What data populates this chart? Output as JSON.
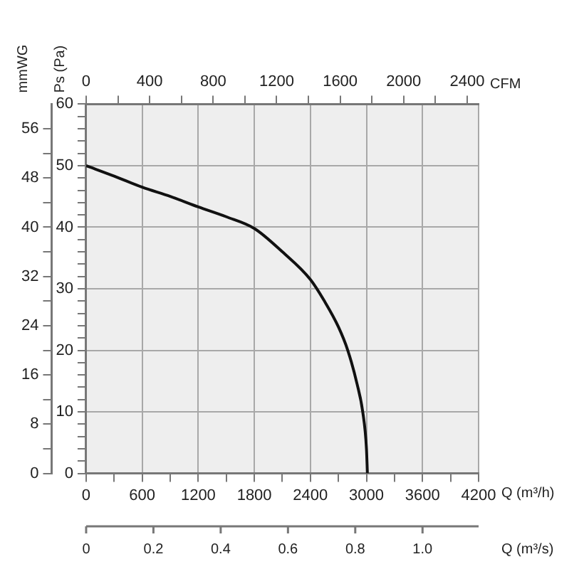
{
  "chart_data": {
    "type": "line",
    "xlabel": "Q (m³/h)",
    "x2label": "CFM",
    "ylabel": "Ps (Pa)",
    "y3label": "mmWG",
    "annotations": [
      "Q (m³/s)",
      "0",
      "0.2",
      "0.4",
      "0.6",
      "0.8",
      "1.0"
    ],
    "x": [
      0,
      300,
      600,
      900,
      1200,
      1500,
      1800,
      2100,
      2400,
      2550,
      2700,
      2800,
      2900,
      2960,
      3000,
      3010
    ],
    "series": [
      {
        "color": "#111111",
        "values": [
          50,
          48.3,
          46.5,
          45,
          43.3,
          41.7,
          39.8,
          36,
          31.5,
          28,
          23.8,
          20,
          14.5,
          10,
          4,
          0
        ]
      }
    ],
    "xlim": [
      0,
      4200
    ],
    "xticks": [
      0,
      {
        "value": 300,
        "label": null
      },
      600,
      {
        "value": 900,
        "label": null
      },
      1200,
      {
        "value": 1500,
        "label": null
      },
      1800,
      {
        "value": 2100,
        "label": null
      },
      2400,
      {
        "value": 2700,
        "label": null
      },
      3000,
      {
        "value": 3300,
        "label": null
      },
      3600,
      {
        "value": 3900,
        "label": null
      },
      4200
    ],
    "ylim": [
      0,
      60
    ],
    "yticks": [
      0,
      {
        "value": 2,
        "label": null
      },
      {
        "value": 4,
        "label": null
      },
      {
        "value": 6,
        "label": null
      },
      {
        "value": 8,
        "label": null
      },
      10,
      {
        "value": 12,
        "label": null
      },
      {
        "value": 14,
        "label": null
      },
      {
        "value": 16,
        "label": null
      },
      {
        "value": 18,
        "label": null
      },
      20,
      {
        "value": 22,
        "label": null
      },
      {
        "value": 24,
        "label": null
      },
      {
        "value": 26,
        "label": null
      },
      {
        "value": 28,
        "label": null
      },
      30,
      {
        "value": 32,
        "label": null
      },
      {
        "value": 34,
        "label": null
      },
      {
        "value": 36,
        "label": null
      },
      {
        "value": 38,
        "label": null
      },
      40,
      {
        "value": 42,
        "label": null
      },
      {
        "value": 44,
        "label": null
      },
      {
        "value": 46,
        "label": null
      },
      {
        "value": 48,
        "label": null
      },
      50,
      {
        "value": 52,
        "label": null
      },
      {
        "value": 54,
        "label": null
      },
      {
        "value": 56,
        "label": null
      },
      {
        "value": 58,
        "label": null
      },
      60
    ],
    "x2lim": [
      0,
      2472
    ],
    "x2ticks": [
      0,
      {
        "value": 200,
        "label": null
      },
      400,
      {
        "value": 600,
        "label": null
      },
      800,
      {
        "value": 1000,
        "label": null
      },
      1200,
      {
        "value": 1400,
        "label": null
      },
      1600,
      {
        "value": 1800,
        "label": null
      },
      2000,
      {
        "value": 2200,
        "label": null
      },
      2400
    ],
    "y3lim": [
      0,
      60
    ],
    "y3ticks": [
      0,
      {
        "value": 4,
        "label": null
      },
      8,
      {
        "value": 12,
        "label": null
      },
      16,
      {
        "value": 20,
        "label": null
      },
      24,
      {
        "value": 28,
        "label": null
      },
      32,
      {
        "value": 36,
        "label": null
      },
      40,
      {
        "value": 44,
        "label": null
      },
      48,
      {
        "value": 52,
        "label": null
      },
      56
    ],
    "grid": true
  }
}
